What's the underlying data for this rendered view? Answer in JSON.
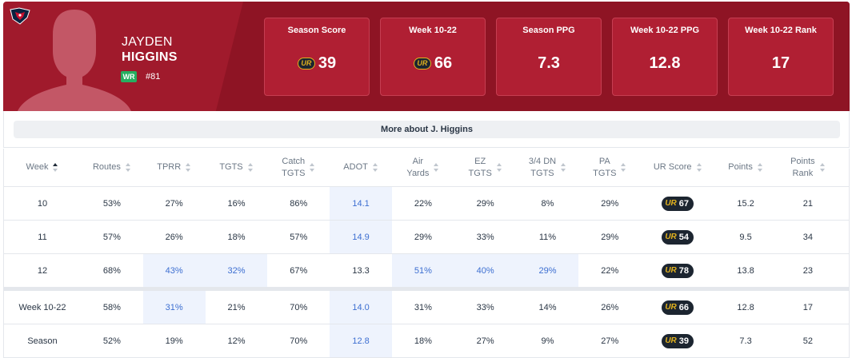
{
  "player": {
    "first_name": "JAYDEN",
    "last_name": "HIGGINS",
    "position": "WR",
    "jersey": "#81"
  },
  "colors": {
    "team_primary": "#a01a2c",
    "team_dark": "#8e1424",
    "ur_gold": "#e2b21e",
    "ur_dark": "#1c2530",
    "position_badge": "#27ae60",
    "highlight_text": "#3d6fd1",
    "highlight_bg": "#eef3fd"
  },
  "icons": {
    "team_logo": "texans-logo-icon",
    "ur_logo": "ur-logo-icon",
    "sort": "sort-arrows-icon"
  },
  "stat_cards": [
    {
      "label": "Season Score",
      "value": "39",
      "ur": true
    },
    {
      "label": "Week 10-22",
      "value": "66",
      "ur": true
    },
    {
      "label": "Season PPG",
      "value": "7.3",
      "ur": false
    },
    {
      "label": "Week 10-22 PPG",
      "value": "12.8",
      "ur": false
    },
    {
      "label": "Week 10-22 Rank",
      "value": "17",
      "ur": false
    }
  ],
  "more_button": "More about J. Higgins",
  "ur_mark": "UR",
  "table": {
    "headers": [
      [
        "Week"
      ],
      [
        "Routes"
      ],
      [
        "TPRR"
      ],
      [
        "TGTS"
      ],
      [
        "Catch",
        "TGTS"
      ],
      [
        "ADOT"
      ],
      [
        "Air",
        "Yards"
      ],
      [
        "EZ",
        "TGTS"
      ],
      [
        "3/4 DN",
        "TGTS"
      ],
      [
        "PA",
        "TGTS"
      ],
      [
        "UR Score"
      ],
      [
        "Points"
      ],
      [
        "Points",
        "Rank"
      ]
    ],
    "sorted_column": 0,
    "rows": [
      {
        "cells": [
          "10",
          "53%",
          "27%",
          "16%",
          "86%",
          "14.1",
          "22%",
          "29%",
          "8%",
          "29%",
          "67",
          "15.2",
          "21"
        ],
        "highlight": [
          5
        ]
      },
      {
        "cells": [
          "11",
          "57%",
          "26%",
          "18%",
          "57%",
          "14.9",
          "29%",
          "33%",
          "11%",
          "29%",
          "54",
          "9.5",
          "34"
        ],
        "highlight": [
          5
        ]
      },
      {
        "cells": [
          "12",
          "68%",
          "43%",
          "32%",
          "67%",
          "13.3",
          "51%",
          "40%",
          "29%",
          "22%",
          "78",
          "13.8",
          "23"
        ],
        "highlight": [
          2,
          3,
          6,
          7,
          8
        ]
      }
    ],
    "summary_rows": [
      {
        "cells": [
          "Week 10-22",
          "58%",
          "31%",
          "21%",
          "70%",
          "14.0",
          "31%",
          "33%",
          "14%",
          "26%",
          "66",
          "12.8",
          "17"
        ],
        "highlight": [
          2,
          5
        ]
      },
      {
        "cells": [
          "Season",
          "52%",
          "19%",
          "12%",
          "70%",
          "12.8",
          "18%",
          "27%",
          "9%",
          "27%",
          "39",
          "7.3",
          "52"
        ],
        "highlight": [
          5
        ]
      }
    ]
  }
}
